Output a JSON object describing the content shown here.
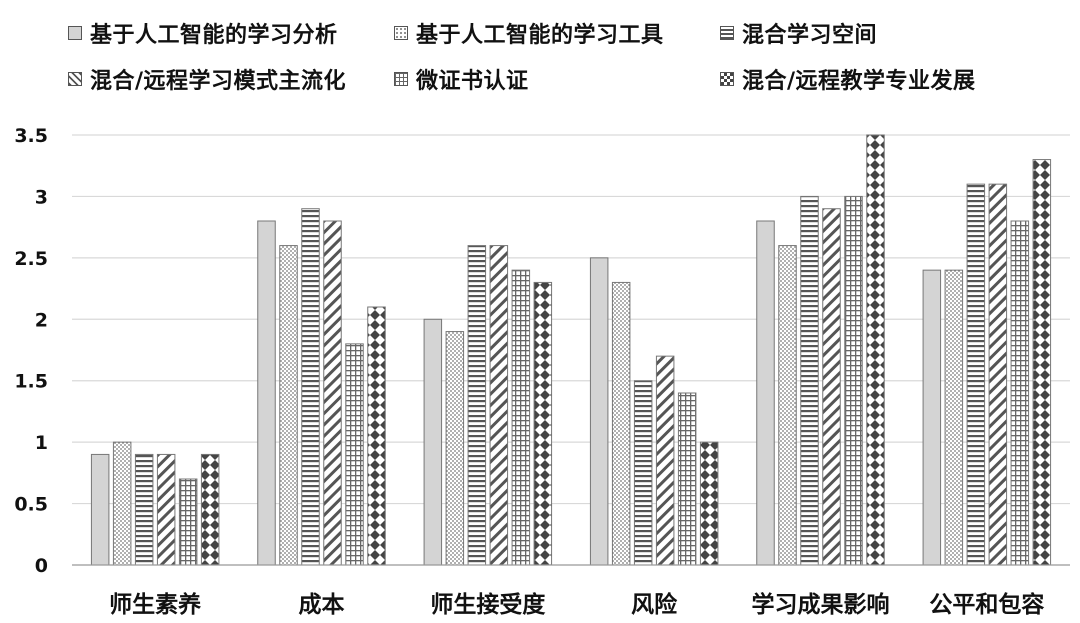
{
  "chart_data": {
    "type": "bar",
    "categories": [
      "师生素养",
      "成本",
      "师生接受度",
      "风险",
      "学习成果影响",
      "公平和包容"
    ],
    "series": [
      {
        "name": "基于人工智能的学习分析",
        "pattern": "solid",
        "values": [
          0.9,
          2.8,
          2.0,
          2.5,
          2.8,
          2.4
        ]
      },
      {
        "name": "基于人工智能的学习工具",
        "pattern": "dots",
        "values": [
          1.0,
          2.6,
          1.9,
          2.3,
          2.6,
          2.4
        ]
      },
      {
        "name": "混合学习空间",
        "pattern": "hlines",
        "values": [
          0.9,
          2.9,
          2.6,
          1.5,
          3.0,
          3.1
        ]
      },
      {
        "name": "混合/远程学习模式主流化",
        "pattern": "diagonal",
        "values": [
          0.9,
          2.8,
          2.6,
          1.7,
          2.9,
          3.1
        ]
      },
      {
        "name": "微证书认证",
        "pattern": "grid",
        "values": [
          0.7,
          1.8,
          2.4,
          1.4,
          3.0,
          2.8
        ]
      },
      {
        "name": "混合/远程教学专业发展",
        "pattern": "diamonds",
        "values": [
          0.9,
          2.1,
          2.3,
          1.0,
          3.5,
          3.3
        ]
      }
    ],
    "ylim": [
      0,
      3.5
    ],
    "yticks": [
      "0",
      "0.5",
      "1",
      "1.5",
      "2",
      "2.5",
      "3",
      "3.5"
    ],
    "grid": true,
    "legend": "top",
    "xlabel": "",
    "ylabel": "",
    "title": ""
  }
}
